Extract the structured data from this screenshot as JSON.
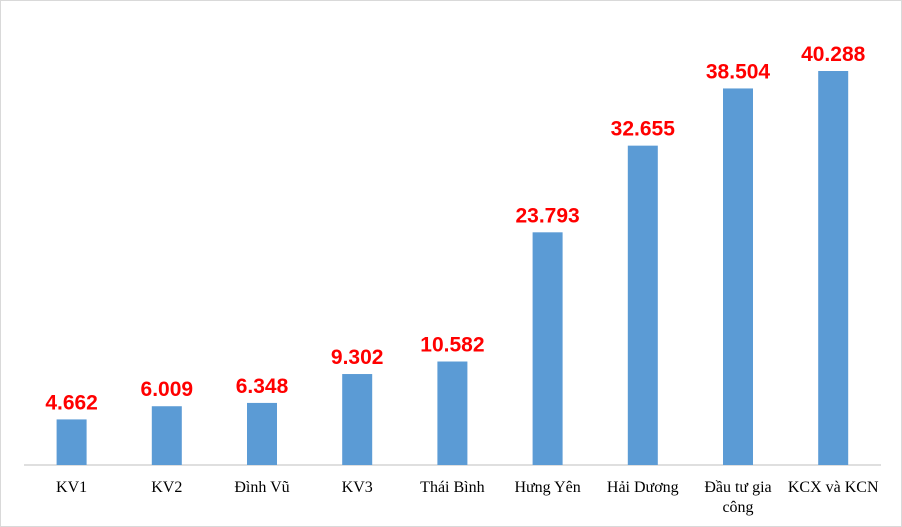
{
  "chart_data": {
    "type": "bar",
    "title": "",
    "xlabel": "",
    "ylabel": "",
    "ylim": [
      0,
      40.288
    ],
    "grid": false,
    "legend": "none",
    "categories": [
      "KV1",
      "KV2",
      "Đình Vũ",
      "KV3",
      "Thái Bình",
      "Hưng Yên",
      "Hải Dương",
      [
        "Đầu tư gia",
        "công"
      ],
      "KCX và KCN"
    ],
    "values": [
      4.662,
      6.009,
      6.348,
      9.302,
      10.582,
      23.793,
      32.655,
      38.504,
      40.288
    ],
    "value_labels": [
      "4.662",
      "6.009",
      "6.348",
      "9.302",
      "10.582",
      "23.793",
      "32.655",
      "38.504",
      "40.288"
    ],
    "colors": {
      "bar": "#5b9bd5",
      "data_label": "#ff0000",
      "axis": "#bfbfbf"
    }
  }
}
